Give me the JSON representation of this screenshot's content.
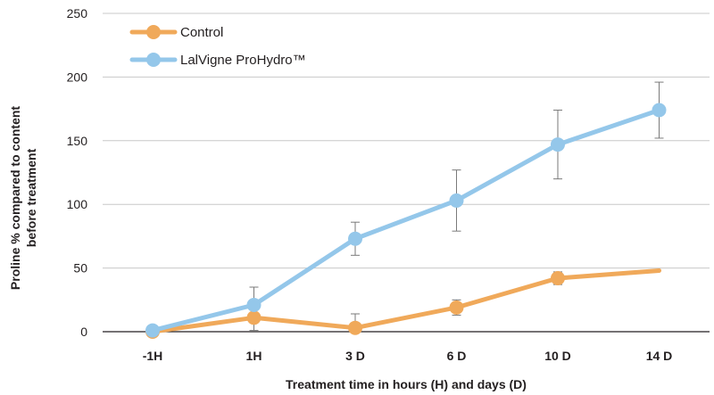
{
  "chart_data": {
    "type": "line",
    "title": "",
    "xlabel": "Treatment time in hours (H) and days (D)",
    "ylabel_lines": [
      "Proline % compared to content",
      "before treatment"
    ],
    "categories": [
      "-1H",
      "1H",
      "3 D",
      "6 D",
      "10 D",
      "14 D"
    ],
    "ylim": [
      0,
      250
    ],
    "yticks": [
      0,
      50,
      100,
      150,
      200,
      250
    ],
    "grid": true,
    "legend_position": "top-left",
    "series": [
      {
        "name": "Control",
        "color": "#f0a95a",
        "values": [
          0,
          11,
          3,
          19,
          42,
          48
        ],
        "errors": [
          0,
          10,
          11,
          6,
          5,
          0
        ]
      },
      {
        "name": "LalVigne ProHydro™",
        "color": "#94c7ea",
        "values": [
          1,
          21,
          73,
          103,
          147,
          174
        ],
        "errors": [
          0,
          14,
          13,
          24,
          27,
          22
        ]
      }
    ]
  }
}
